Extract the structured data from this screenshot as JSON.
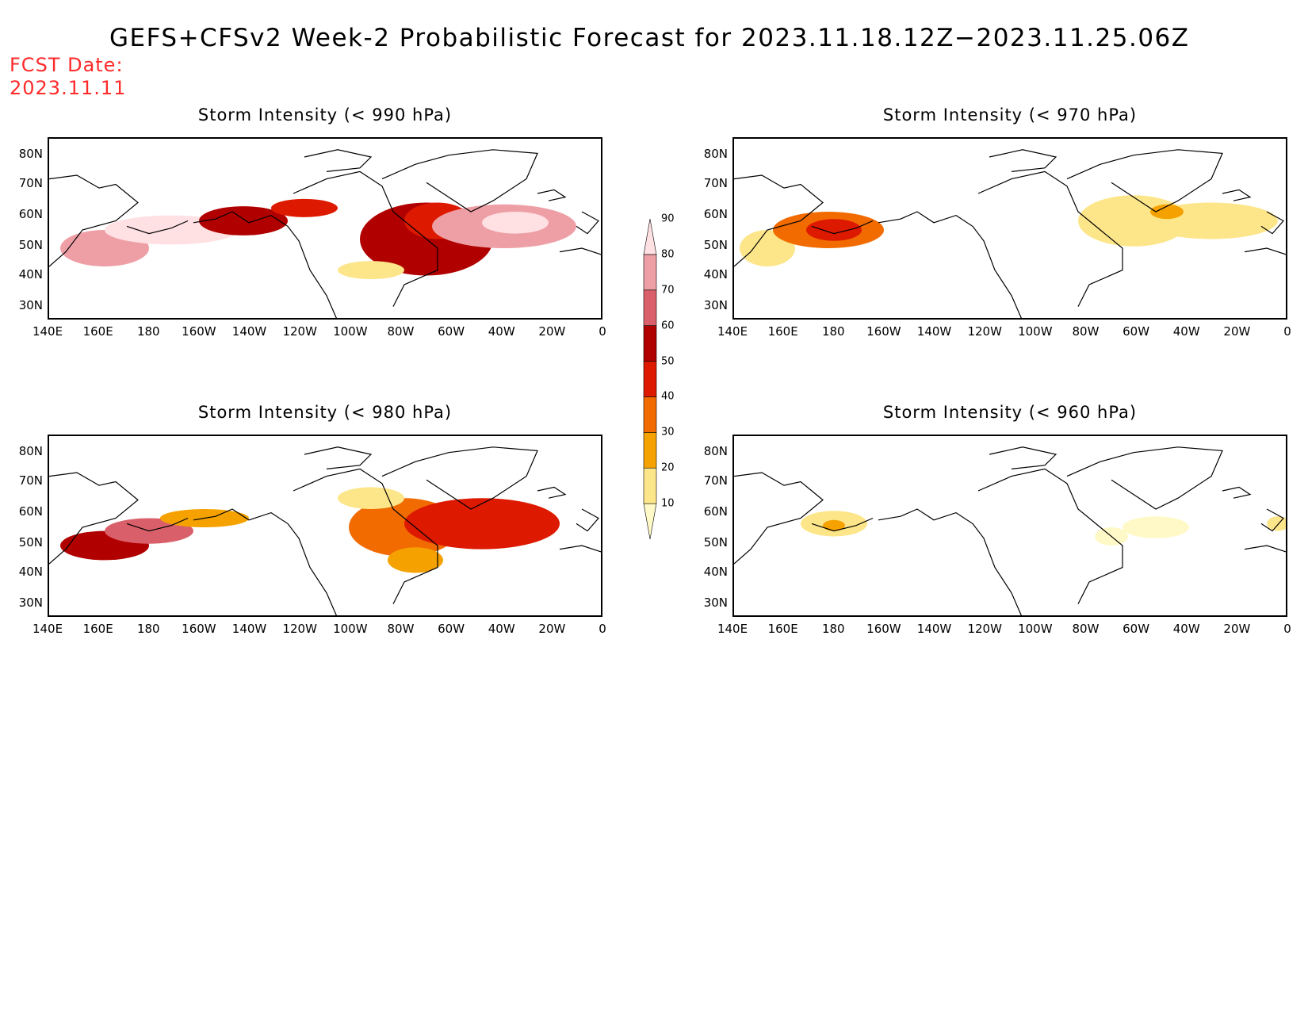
{
  "title": "GEFS+CFSv2 Week-2 Probabilistic Forecast for 2023.11.18.12Z−2023.11.25.06Z",
  "fcst_label": "FCST Date:",
  "fcst_date": "2023.11.11",
  "lat_ticks": [
    "80N",
    "70N",
    "60N",
    "50N",
    "40N",
    "30N"
  ],
  "lon_ticks": [
    "140E",
    "160E",
    "180",
    "160W",
    "140W",
    "120W",
    "100W",
    "80W",
    "60W",
    "40W",
    "20W",
    "0"
  ],
  "colorbar": {
    "levels": [
      "10",
      "20",
      "30",
      "40",
      "50",
      "60",
      "70",
      "80",
      "90"
    ],
    "colors": [
      "#fff9c8",
      "#fde68a",
      "#f5a200",
      "#f26b00",
      "#dd1a00",
      "#b00000",
      "#d9606a",
      "#ee9fa6",
      "#ffe0e3"
    ]
  },
  "panels": [
    {
      "title": "Storm Intensity (< 990 hPa)"
    },
    {
      "title": "Storm Intensity (< 970 hPa)"
    },
    {
      "title": "Storm Intensity (< 980 hPa)"
    },
    {
      "title": "Storm Intensity (< 960 hPa)"
    }
  ]
}
